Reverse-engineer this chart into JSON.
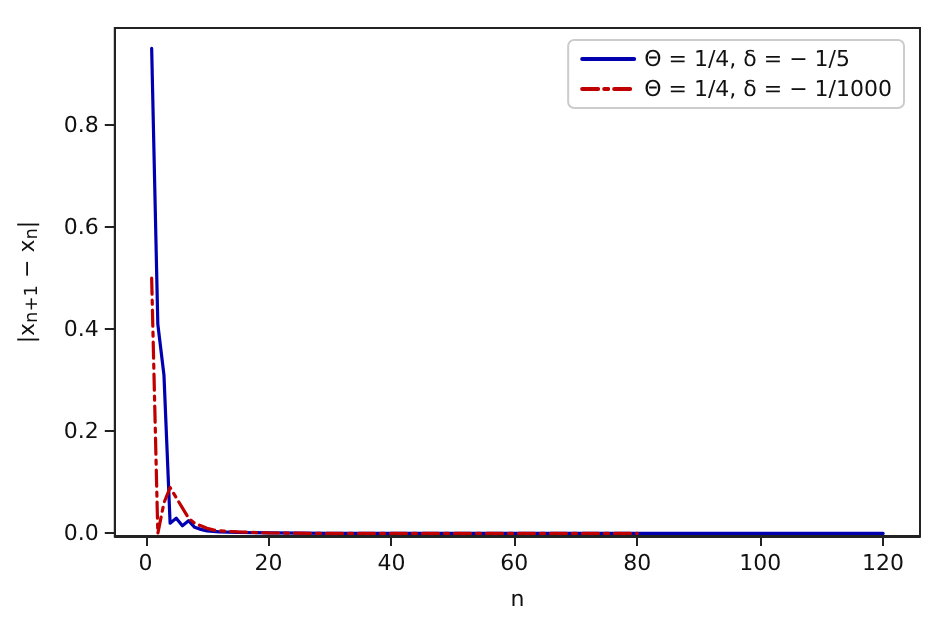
{
  "chart_data": {
    "type": "line",
    "xlabel": "n",
    "ylabel": "|x$_{n+1}$ − x$_{n}$|",
    "xlim": [
      -5,
      126
    ],
    "xticks": [
      0,
      20,
      40,
      60,
      80,
      100,
      120
    ],
    "ylim": [
      -0.005,
      0.99
    ],
    "yticks": [
      {
        "value": 0,
        "label": "0.0"
      },
      {
        "value": 0.2,
        "label": "0.2"
      },
      {
        "value": 0.4,
        "label": "0.4"
      },
      {
        "value": 0.6,
        "label": "0.6"
      },
      {
        "value": 0.8,
        "label": "0.8"
      }
    ],
    "legend": "top right",
    "grid": false,
    "series": [
      {
        "name": "Θ = 1/4, δ = − 1/5",
        "color": "#0000b0",
        "line_style": "solid",
        "x": [
          1,
          2,
          3,
          4,
          5,
          6,
          7,
          8,
          9,
          10,
          11,
          12,
          15,
          20,
          30,
          40,
          60,
          80,
          100,
          120
        ],
        "values": [
          0.95,
          0.41,
          0.31,
          0.02,
          0.03,
          0.015,
          0.025,
          0.012,
          0.008,
          0.005,
          0.004,
          0.003,
          0.002,
          0.001,
          0,
          0,
          0,
          0,
          0,
          0
        ]
      },
      {
        "name": "Θ = 1/4, δ = − 1/1000",
        "color": "#c00000",
        "line_style": "dashdot",
        "x": [
          1,
          2,
          3,
          4,
          5,
          6,
          7,
          8,
          9,
          10,
          11,
          12,
          15,
          20,
          30,
          40,
          60,
          80
        ],
        "values": [
          0.5,
          0,
          0.06,
          0.09,
          0.07,
          0.05,
          0.03,
          0.02,
          0.015,
          0.01,
          0.007,
          0.005,
          0.003,
          0.001,
          0,
          0,
          0,
          0
        ]
      }
    ]
  }
}
